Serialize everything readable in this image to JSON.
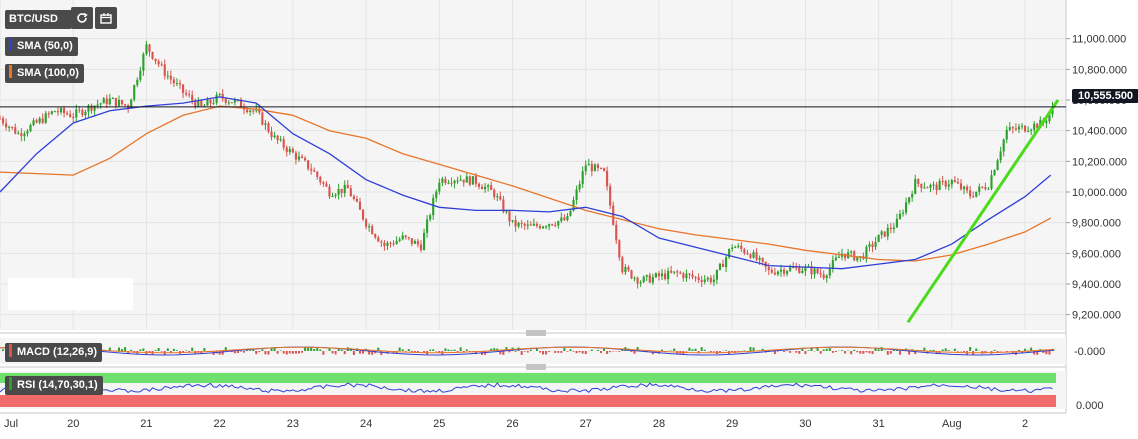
{
  "header": {
    "symbol": "BTC/USD",
    "refresh_icon": "refresh-icon",
    "calendar_icon": "calendar-icon"
  },
  "indicators": {
    "sma50": {
      "label": "SMA (50,0)",
      "color": "#2f40d6"
    },
    "sma100": {
      "label": "SMA (100,0)",
      "color": "#e8752a"
    },
    "macd": {
      "label": "MACD (12,26,9)",
      "axis_label": "-0.000"
    },
    "rsi": {
      "label": "RSI (14,70,30,1)",
      "axis_label": "0.000"
    }
  },
  "current_price": {
    "label": "10,555.500",
    "value": 10555.5
  },
  "colors": {
    "bull": "#2ca02c",
    "bear": "#d9534f",
    "trendline": "#4cdb1c",
    "rsi_overbought": "#6ee06e",
    "rsi_oversold": "#f26b6b"
  },
  "chart_data": {
    "type": "candlestick",
    "y_axis": {
      "ticks": [
        "11,000.000",
        "10,800.000",
        "10,600.000",
        "10,400.000",
        "10,200.000",
        "10,000.000",
        "9,800.000",
        "9,600.000",
        "9,400.000",
        "9,200.000"
      ],
      "tick_values": [
        11000,
        10800,
        10600,
        10400,
        10200,
        10000,
        9800,
        9600,
        9400,
        9200
      ],
      "range": [
        9100,
        11200
      ]
    },
    "x_axis": {
      "ticks": [
        "Jul",
        "20",
        "21",
        "22",
        "23",
        "24",
        "25",
        "26",
        "27",
        "28",
        "29",
        "30",
        "31",
        "Aug",
        "2"
      ],
      "tick_days": [
        19,
        20,
        21,
        22,
        23,
        24,
        25,
        26,
        27,
        28,
        29,
        30,
        31,
        32,
        33
      ],
      "range_days": [
        19,
        33.45
      ]
    },
    "closes": [
      [
        19.0,
        10480
      ],
      [
        19.25,
        10380
      ],
      [
        19.5,
        10450
      ],
      [
        19.75,
        10530
      ],
      [
        20.0,
        10500
      ],
      [
        20.25,
        10560
      ],
      [
        20.5,
        10600
      ],
      [
        20.75,
        10560
      ],
      [
        21.0,
        10950
      ],
      [
        21.25,
        10780
      ],
      [
        21.5,
        10650
      ],
      [
        21.75,
        10550
      ],
      [
        22.0,
        10620
      ],
      [
        22.25,
        10580
      ],
      [
        22.5,
        10520
      ],
      [
        22.75,
        10350
      ],
      [
        23.0,
        10250
      ],
      [
        23.25,
        10150
      ],
      [
        23.5,
        10000
      ],
      [
        23.75,
        10020
      ],
      [
        24.0,
        9800
      ],
      [
        24.25,
        9650
      ],
      [
        24.5,
        9700
      ],
      [
        24.75,
        9650
      ],
      [
        25.0,
        10080
      ],
      [
        25.25,
        10090
      ],
      [
        25.5,
        10070
      ],
      [
        25.75,
        9990
      ],
      [
        26.0,
        9790
      ],
      [
        26.25,
        9770
      ],
      [
        26.5,
        9800
      ],
      [
        26.75,
        9820
      ],
      [
        27.0,
        10180
      ],
      [
        27.25,
        10120
      ],
      [
        27.5,
        9500
      ],
      [
        27.75,
        9420
      ],
      [
        28.0,
        9450
      ],
      [
        28.25,
        9470
      ],
      [
        28.5,
        9440
      ],
      [
        28.75,
        9430
      ],
      [
        29.0,
        9650
      ],
      [
        29.25,
        9600
      ],
      [
        29.5,
        9480
      ],
      [
        29.75,
        9500
      ],
      [
        30.0,
        9500
      ],
      [
        30.25,
        9460
      ],
      [
        30.5,
        9600
      ],
      [
        30.75,
        9570
      ],
      [
        31.0,
        9700
      ],
      [
        31.25,
        9800
      ],
      [
        31.5,
        10060
      ],
      [
        31.75,
        10030
      ],
      [
        32.0,
        10070
      ],
      [
        32.25,
        9980
      ],
      [
        32.5,
        10050
      ],
      [
        32.75,
        10400
      ],
      [
        33.0,
        10420
      ],
      [
        33.25,
        10450
      ],
      [
        33.4,
        10555.5
      ]
    ],
    "sma50": [
      [
        19.0,
        10000
      ],
      [
        19.5,
        10250
      ],
      [
        20.0,
        10450
      ],
      [
        20.5,
        10530
      ],
      [
        21.0,
        10560
      ],
      [
        21.5,
        10580
      ],
      [
        22.0,
        10620
      ],
      [
        22.5,
        10580
      ],
      [
        23.0,
        10380
      ],
      [
        23.5,
        10250
      ],
      [
        24.0,
        10080
      ],
      [
        24.5,
        9980
      ],
      [
        25.0,
        9900
      ],
      [
        25.5,
        9880
      ],
      [
        26.0,
        9880
      ],
      [
        26.5,
        9870
      ],
      [
        27.0,
        9900
      ],
      [
        27.5,
        9840
      ],
      [
        28.0,
        9700
      ],
      [
        28.5,
        9640
      ],
      [
        29.0,
        9580
      ],
      [
        29.5,
        9520
      ],
      [
        30.0,
        9510
      ],
      [
        30.5,
        9500
      ],
      [
        31.0,
        9530
      ],
      [
        31.5,
        9560
      ],
      [
        32.0,
        9660
      ],
      [
        32.5,
        9820
      ],
      [
        33.0,
        9970
      ],
      [
        33.35,
        10110
      ]
    ],
    "sma100": [
      [
        19.0,
        10130
      ],
      [
        19.5,
        10120
      ],
      [
        20.0,
        10110
      ],
      [
        20.5,
        10220
      ],
      [
        21.0,
        10380
      ],
      [
        21.5,
        10500
      ],
      [
        22.0,
        10560
      ],
      [
        22.5,
        10540
      ],
      [
        23.0,
        10500
      ],
      [
        23.5,
        10400
      ],
      [
        24.0,
        10350
      ],
      [
        24.5,
        10250
      ],
      [
        25.0,
        10180
      ],
      [
        25.5,
        10110
      ],
      [
        26.0,
        10040
      ],
      [
        26.5,
        9960
      ],
      [
        27.0,
        9880
      ],
      [
        27.5,
        9820
      ],
      [
        28.0,
        9760
      ],
      [
        28.5,
        9720
      ],
      [
        29.0,
        9690
      ],
      [
        29.5,
        9660
      ],
      [
        30.0,
        9620
      ],
      [
        30.5,
        9590
      ],
      [
        31.0,
        9560
      ],
      [
        31.5,
        9550
      ],
      [
        32.0,
        9590
      ],
      [
        32.5,
        9660
      ],
      [
        33.0,
        9740
      ],
      [
        33.35,
        9830
      ]
    ],
    "trendline": [
      [
        31.4,
        9150
      ],
      [
        33.45,
        10600
      ]
    ]
  }
}
